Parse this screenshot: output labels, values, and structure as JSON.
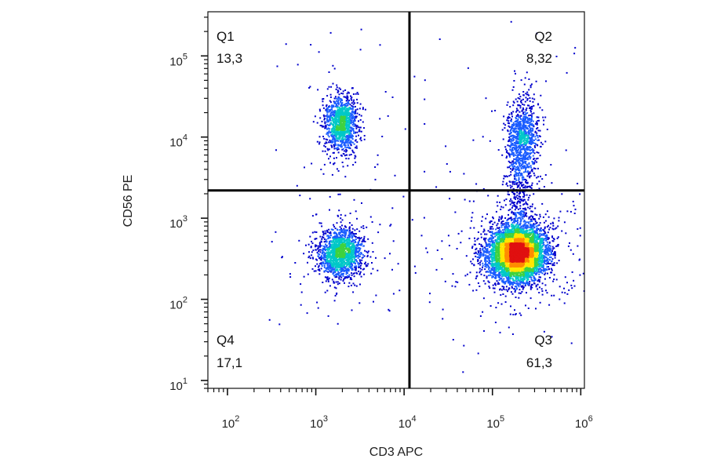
{
  "chart_data": {
    "type": "scatter",
    "subtype": "flow-cytometry-density-dot-plot",
    "xlabel": "CD3 APC",
    "ylabel": "CD56 PE",
    "x_scale": "log",
    "y_scale": "log",
    "xlim": [
      60,
      1100000
    ],
    "ylim": [
      8,
      350000
    ],
    "x_ticks": [
      {
        "base": "10",
        "exp": "2",
        "value": 100
      },
      {
        "base": "10",
        "exp": "3",
        "value": 1000
      },
      {
        "base": "10",
        "exp": "4",
        "value": 10000
      },
      {
        "base": "10",
        "exp": "5",
        "value": 100000
      },
      {
        "base": "10",
        "exp": "6",
        "value": 1000000
      }
    ],
    "y_ticks": [
      {
        "base": "10",
        "exp": "1",
        "value": 10
      },
      {
        "base": "10",
        "exp": "2",
        "value": 100
      },
      {
        "base": "10",
        "exp": "3",
        "value": 1000
      },
      {
        "base": "10",
        "exp": "4",
        "value": 10000
      },
      {
        "base": "10",
        "exp": "5",
        "value": 100000
      }
    ],
    "gate": {
      "x": 11500,
      "y": 2200
    },
    "quadrants": [
      {
        "name": "Q1",
        "percent": "13,3"
      },
      {
        "name": "Q2",
        "percent": "8,32"
      },
      {
        "name": "Q3",
        "percent": "61,3"
      },
      {
        "name": "Q4",
        "percent": "17,1"
      }
    ],
    "populations": [
      {
        "quadrant": "Q3",
        "center_x": 190000,
        "center_y": 380,
        "share": 0.613
      },
      {
        "quadrant": "Q4",
        "center_x": 1900,
        "center_y": 380,
        "share": 0.171
      },
      {
        "quadrant": "Q1",
        "center_x": 1900,
        "center_y": 15000,
        "share": 0.133
      },
      {
        "quadrant": "Q2",
        "center_x": 220000,
        "center_y": 10000,
        "share": 0.0832
      }
    ],
    "color_scale": [
      "#0000cc",
      "#1a5cff",
      "#00c8c8",
      "#3fd23f",
      "#ffe600",
      "#ff8c00",
      "#e01010"
    ],
    "grid": false,
    "legend": "none"
  }
}
